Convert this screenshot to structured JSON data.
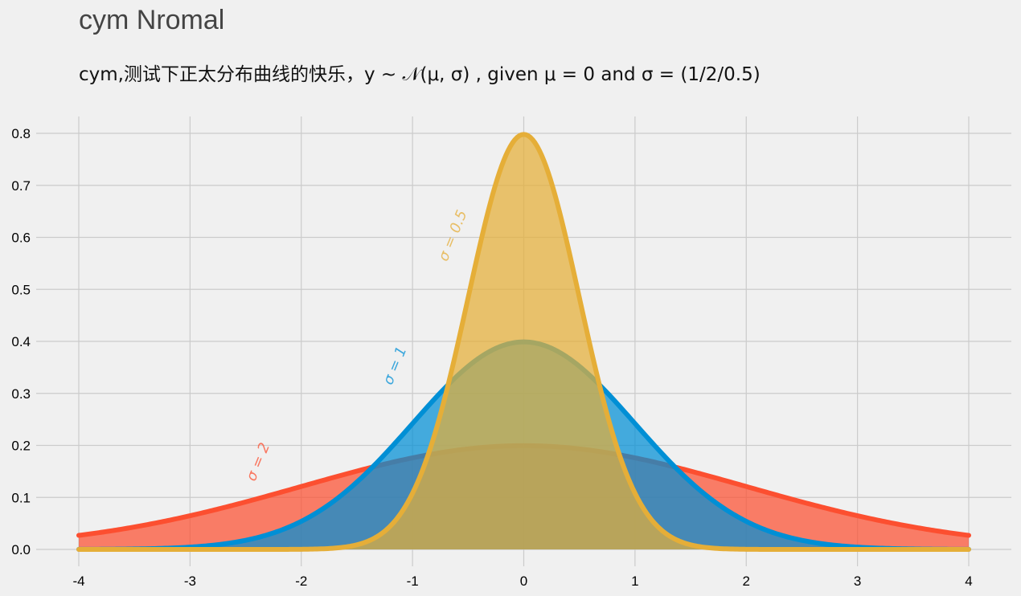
{
  "chart_data": {
    "type": "area",
    "title": "cym Nromal",
    "subtitle": "cym,测试下正太分布曲线的快乐，y ~ 𝒩(μ, σ) , given μ = 0 and σ = (1/2/0.5)",
    "xlabel": "",
    "ylabel": "",
    "xlim": [
      -4,
      4
    ],
    "ylim": [
      0,
      0.8
    ],
    "x_ticks": [
      "-4",
      "-3",
      "-2",
      "-1",
      "0",
      "1",
      "2",
      "3",
      "4"
    ],
    "y_ticks": [
      "0.0",
      "0.1",
      "0.2",
      "0.3",
      "0.4",
      "0.5",
      "0.6",
      "0.7",
      "0.8"
    ],
    "grid": true,
    "series": [
      {
        "label": "σ = 2",
        "mu": 0,
        "sigma": 2,
        "color": "#fc4f30",
        "peak": 0.2,
        "label_position": {
          "x": -2.35,
          "y": 0.165
        }
      },
      {
        "label": "σ = 1",
        "mu": 0,
        "sigma": 1,
        "color": "#008fd5",
        "peak": 0.4,
        "label_position": {
          "x": -1.12,
          "y": 0.35
        }
      },
      {
        "label": "σ = 0.5",
        "mu": 0,
        "sigma": 0.5,
        "color": "#e5ae38",
        "peak": 0.8,
        "label_position": {
          "x": -0.6,
          "y": 0.6
        }
      }
    ]
  }
}
